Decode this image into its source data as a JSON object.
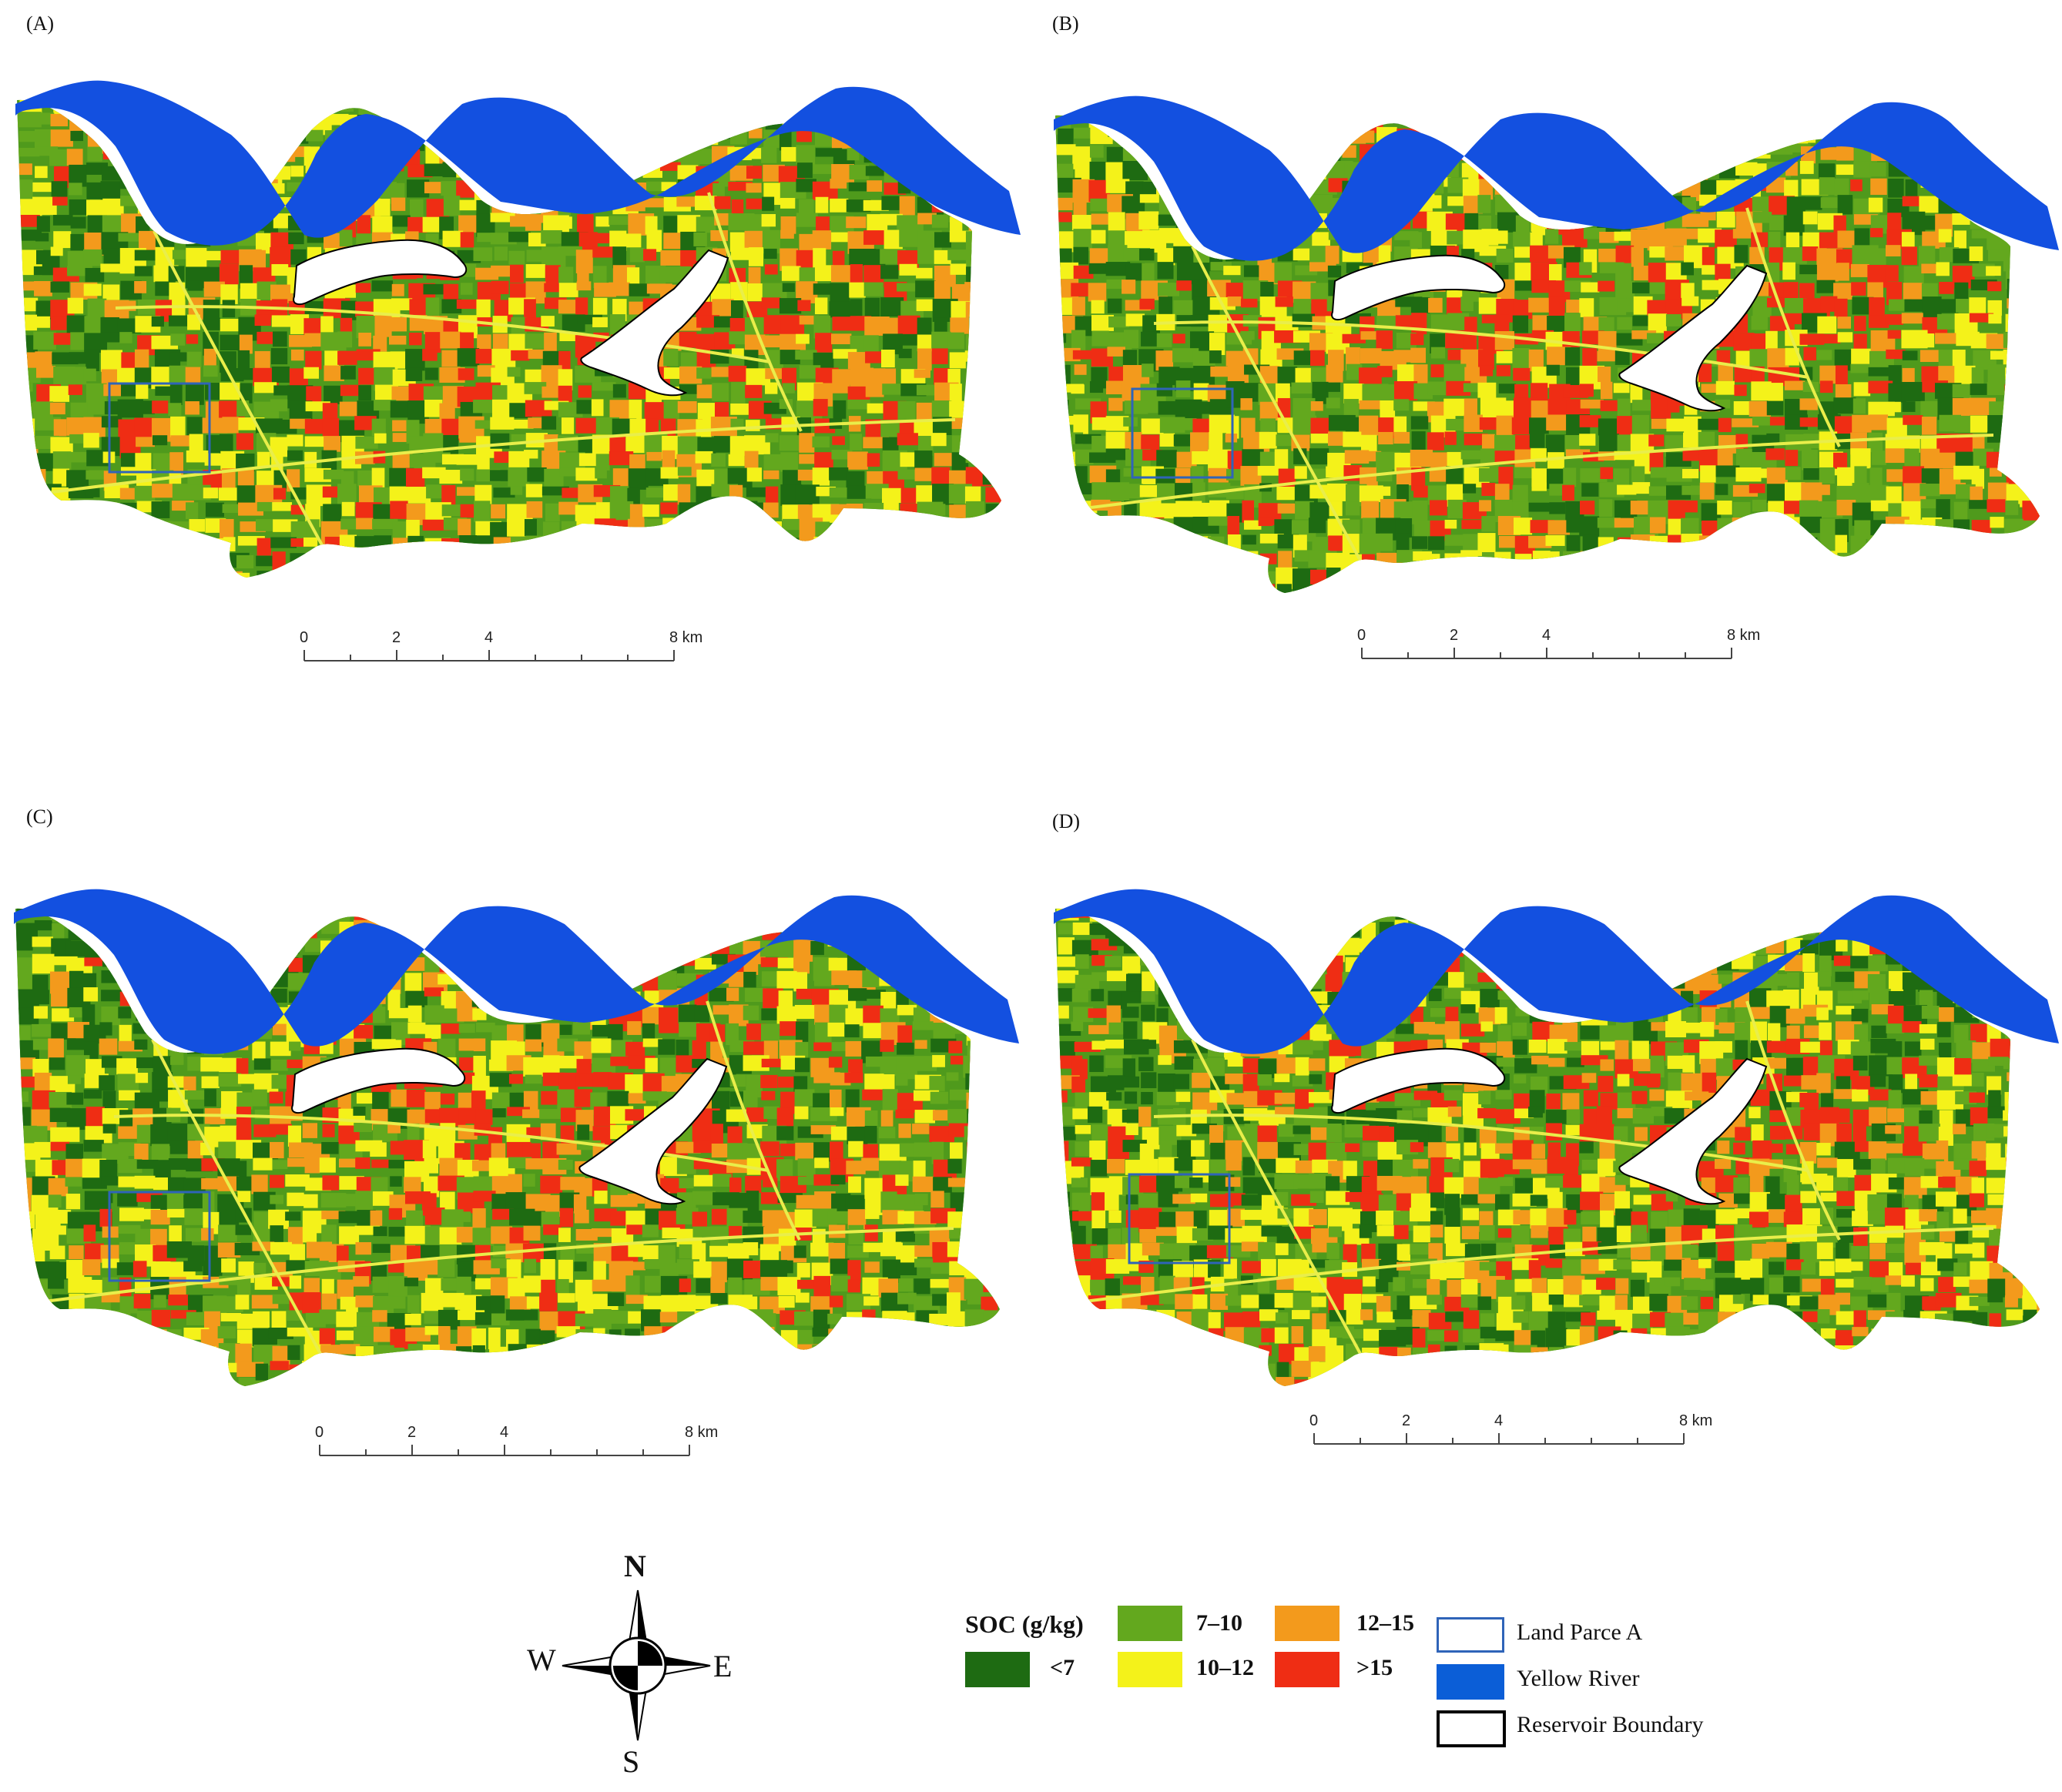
{
  "panels": [
    {
      "label": "(A)"
    },
    {
      "label": "(B)"
    },
    {
      "label": "(C)"
    },
    {
      "label": "(D)"
    }
  ],
  "scale_bar": {
    "ticks": [
      "0",
      "2",
      "4",
      "8 km"
    ]
  },
  "compass": {
    "north": "N",
    "south": "S",
    "east": "E",
    "west": "W"
  },
  "legend": {
    "title": "SOC (g/kg)",
    "classes": [
      {
        "label": "<7",
        "color": "#1e6b12"
      },
      {
        "label": "7–10",
        "color": "#63a81e"
      },
      {
        "label": "10–12",
        "color": "#f4f21a"
      },
      {
        "label": "12–15",
        "color": "#f39a1c"
      },
      {
        "label": ">15",
        "color": "#ef2d14"
      }
    ],
    "features": [
      {
        "label": "Land Parce A",
        "icon": "land-parcel-outline-icon",
        "color": "#2f64b8"
      },
      {
        "label": "Yellow River",
        "icon": "river-swatch-icon",
        "color": "#0b5ed7"
      },
      {
        "label": "Reservoir Boundary",
        "icon": "reservoir-outline-icon",
        "color": "#000000"
      }
    ]
  },
  "colors": {
    "river": "#1350e0",
    "reservoir_fill": "#ffffff",
    "parcel_outline": "#2f64b8",
    "base_green": "#4f9a1c"
  }
}
